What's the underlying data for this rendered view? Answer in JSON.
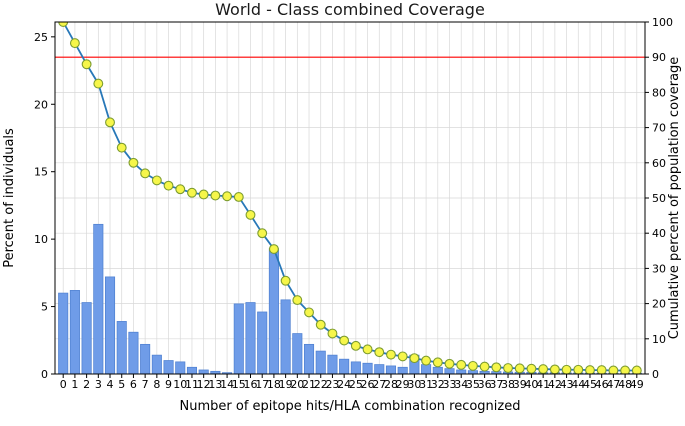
{
  "chart_data": {
    "type": "bar+line",
    "title": "World - Class combined Coverage",
    "xlabel": "Number of epitope hits/HLA combination recognized",
    "ylabel_left": "Percent of individuals",
    "ylabel_right": "Cumulative percent of population coverage",
    "x": [
      0,
      1,
      2,
      3,
      4,
      5,
      6,
      7,
      8,
      9,
      10,
      11,
      12,
      13,
      14,
      15,
      16,
      17,
      18,
      19,
      20,
      21,
      22,
      23,
      24,
      25,
      26,
      27,
      28,
      29,
      30,
      31,
      32,
      33,
      34,
      35,
      36,
      37,
      38,
      39,
      40,
      41,
      42,
      43,
      44,
      45,
      46,
      47,
      48,
      49
    ],
    "series": [
      {
        "name": "Percent of individuals",
        "type": "bar",
        "axis": "left",
        "values": [
          6.0,
          6.2,
          5.3,
          11.1,
          7.2,
          3.9,
          3.1,
          2.2,
          1.4,
          1.0,
          0.9,
          0.5,
          0.3,
          0.2,
          0.1,
          5.2,
          5.3,
          4.6,
          9.3,
          5.5,
          3.0,
          2.2,
          1.7,
          1.4,
          1.1,
          0.9,
          0.8,
          0.7,
          0.6,
          0.5,
          1.4,
          0.7,
          0.5,
          0.4,
          0.3,
          0.25,
          0.2,
          0.18,
          0.15,
          0.13,
          0.12,
          0.1,
          0.1,
          0.09,
          0.08,
          0.07,
          0.06,
          0.06,
          0.05,
          0.05
        ]
      },
      {
        "name": "Cumulative percent of population coverage",
        "type": "line",
        "axis": "right",
        "values": [
          100,
          94.0,
          88.0,
          82.5,
          71.5,
          64.3,
          60.0,
          57.0,
          55.0,
          53.5,
          52.5,
          51.5,
          51.0,
          50.7,
          50.5,
          50.3,
          45.2,
          40.0,
          35.5,
          26.5,
          21.0,
          17.5,
          14.0,
          11.5,
          9.5,
          8.0,
          7.0,
          6.2,
          5.5,
          5.0,
          4.5,
          3.8,
          3.3,
          2.9,
          2.6,
          2.3,
          2.1,
          1.9,
          1.7,
          1.6,
          1.5,
          1.4,
          1.3,
          1.2,
          1.2,
          1.1,
          1.1,
          1.0,
          1.0,
          1.0
        ]
      }
    ],
    "threshold_line": {
      "axis": "right",
      "value": 90,
      "color": "#ff0000"
    },
    "left_axis": {
      "min": 0,
      "max": 26.1,
      "ticks": [
        0,
        5,
        10,
        15,
        20,
        25
      ]
    },
    "right_axis": {
      "min": 0,
      "max": 100,
      "ticks": [
        0,
        10,
        20,
        30,
        40,
        50,
        60,
        70,
        80,
        90,
        100
      ]
    },
    "grid": true,
    "legend": "none",
    "colors": {
      "bar": "#6f9ce8",
      "bar_edge": "#4d7fd0",
      "line": "#2878b8",
      "marker_fill": "#f6f64a",
      "marker_edge": "#7d9c30",
      "grid": "#d8d8d8",
      "threshold": "#ff0000",
      "axis": "#000000"
    }
  }
}
